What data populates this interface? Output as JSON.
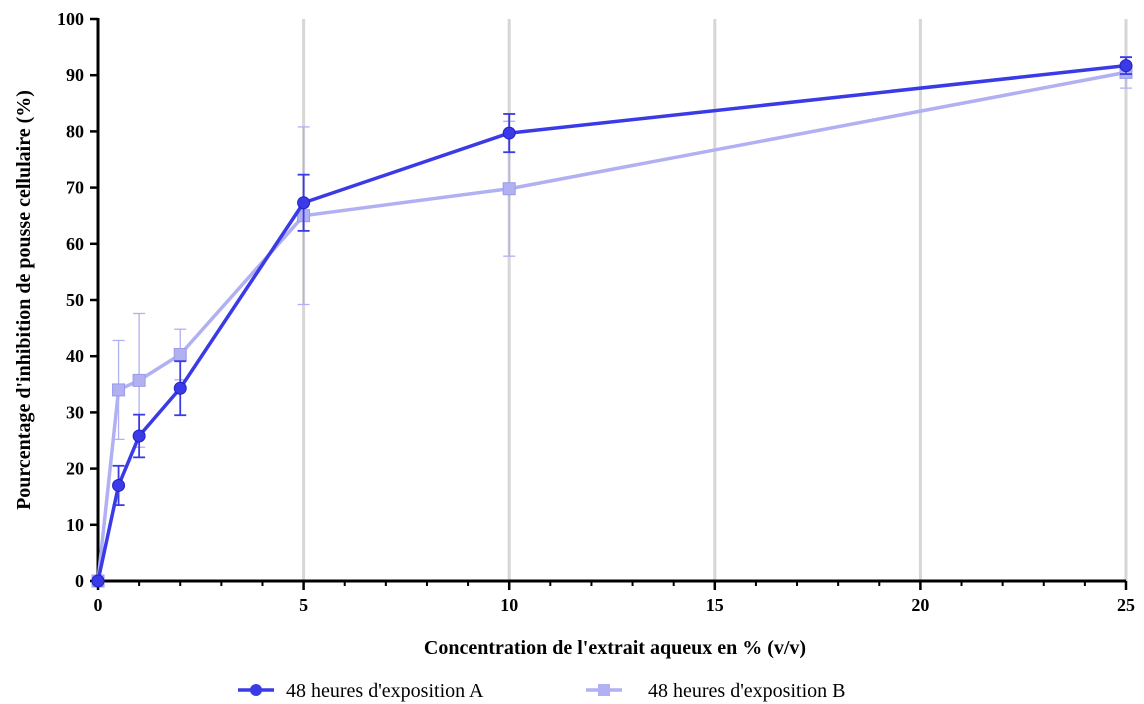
{
  "chart_data": {
    "type": "line",
    "title": "",
    "xlabel": "Concentration de l'extrait aqueux en % (v/v)",
    "ylabel": "Pourcentage d'inhibition de pousse cellulaire (%)",
    "xlim": [
      0,
      25
    ],
    "ylim": [
      0,
      100
    ],
    "x_ticks": [
      0,
      5,
      10,
      15,
      20,
      25
    ],
    "y_ticks": [
      0,
      10,
      20,
      30,
      40,
      50,
      60,
      70,
      80,
      90,
      100
    ],
    "grid": "vertical",
    "legend_position": "bottom",
    "series": [
      {
        "name": "48 heures d'exposition A",
        "marker": "circle",
        "color": "#3a3ae6",
        "x": [
          0,
          0.5,
          1,
          2,
          5,
          10,
          25
        ],
        "y": [
          0,
          17,
          25.8,
          34.3,
          67.3,
          79.7,
          91.7
        ],
        "err_low": [
          0,
          3.5,
          3.8,
          4.8,
          5.0,
          3.4,
          1.5
        ],
        "err_high": [
          0,
          3.5,
          3.8,
          4.8,
          5.0,
          3.4,
          1.5
        ]
      },
      {
        "name": "48 heures d'exposition B",
        "marker": "square",
        "color": "#b0b0f2",
        "x": [
          0,
          0.5,
          1,
          2,
          5,
          10,
          25
        ],
        "y": [
          0,
          34,
          35.7,
          40.3,
          65,
          69.8,
          90.5
        ],
        "err_low": [
          0,
          8.8,
          11.9,
          4.5,
          15.8,
          12.0,
          2.8
        ],
        "err_high": [
          0,
          8.8,
          11.9,
          4.5,
          15.8,
          12.0,
          2.8
        ]
      }
    ]
  }
}
